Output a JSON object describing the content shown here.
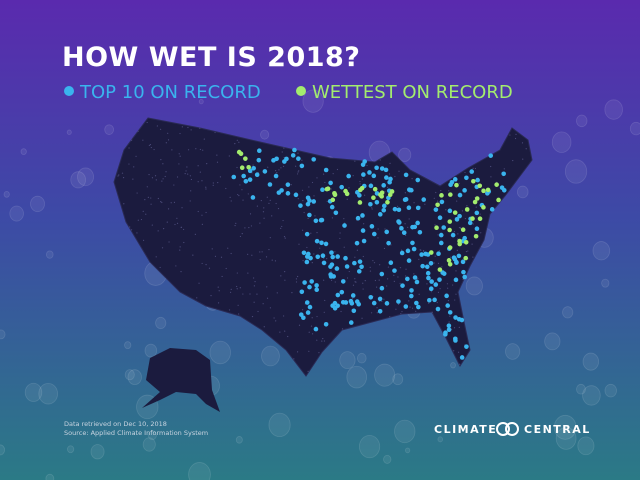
{
  "header": {
    "title": "HOW WET IS 2018?",
    "legend": [
      {
        "label": "TOP 10 ON RECORD",
        "color": "#3ab4ee"
      },
      {
        "label": "WETTEST ON RECORD",
        "color": "#a3ec6e"
      }
    ]
  },
  "footer": {
    "notes": [
      "Data retrieved on Dec 10, 2018",
      "Source: Applied Climate Information System"
    ],
    "logo": [
      "CLIMATE",
      "CENTRAL"
    ]
  }
}
